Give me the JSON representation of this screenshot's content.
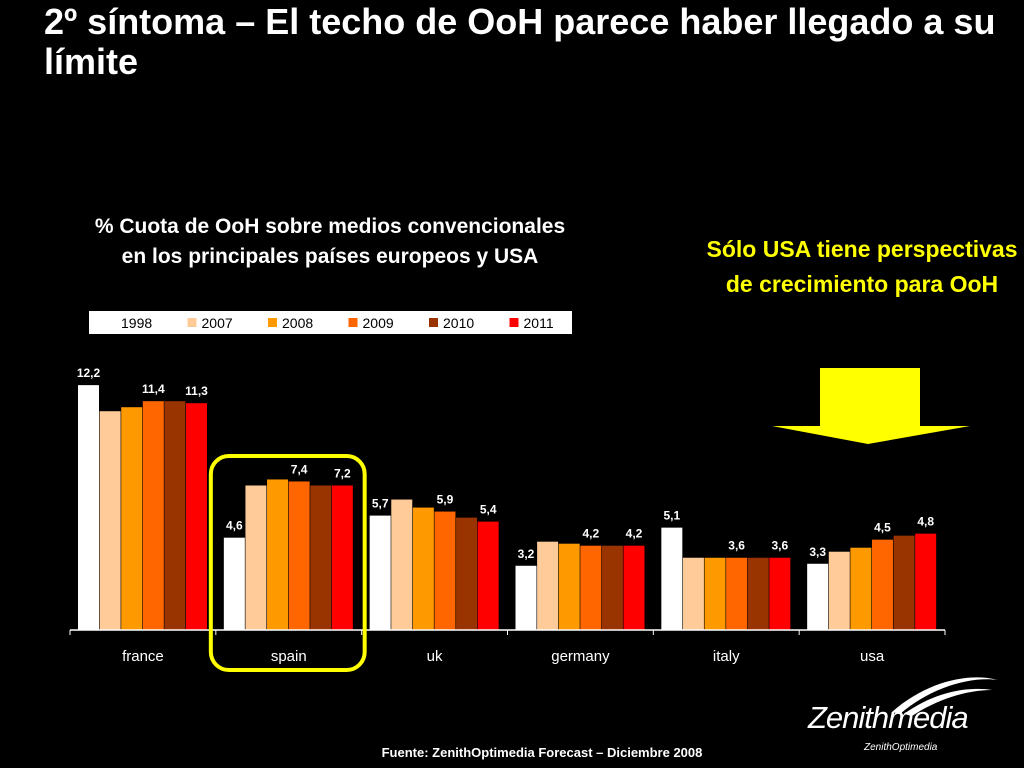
{
  "slide": {
    "title": "2º síntoma – El techo de OoH parece haber llegado a su límite",
    "subtitle_line1": "% Cuota de OoH sobre medios convencionales",
    "subtitle_line2": "en los principales países europeos y USA",
    "callout": "Sólo USA tiene perspectivas de crecimiento para OoH",
    "source": "Fuente: ZenithOptimedia Forecast – Diciembre 2008",
    "logo_main": "Zenithmedia",
    "logo_sub": "ZenithOptimedia"
  },
  "colors": {
    "background": "#000000",
    "callout": "#ffff00",
    "highlight": "#ffff00",
    "series": [
      "#ffffff",
      "#ffcc99",
      "#ff9900",
      "#ff6600",
      "#993300",
      "#ff0000"
    ]
  },
  "chart_data": {
    "type": "bar",
    "categories": [
      "france",
      "spain",
      "uk",
      "germany",
      "italy",
      "usa"
    ],
    "series": [
      {
        "name": "1998",
        "values": [
          12.2,
          4.6,
          5.7,
          3.2,
          5.1,
          3.3
        ]
      },
      {
        "name": "2007",
        "values": [
          10.9,
          7.2,
          6.5,
          4.4,
          3.6,
          3.9
        ]
      },
      {
        "name": "2008",
        "values": [
          11.1,
          7.5,
          6.1,
          4.3,
          3.6,
          4.1
        ]
      },
      {
        "name": "2009",
        "values": [
          11.4,
          7.4,
          5.9,
          4.2,
          3.6,
          4.5
        ]
      },
      {
        "name": "2010",
        "values": [
          11.4,
          7.2,
          5.6,
          4.2,
          3.6,
          4.7
        ]
      },
      {
        "name": "2011",
        "values": [
          11.3,
          7.2,
          5.4,
          4.2,
          3.6,
          4.8
        ]
      }
    ],
    "data_labels": [
      {
        "category": "france",
        "series": "1998",
        "text": "12,2"
      },
      {
        "category": "france",
        "series": "2009",
        "text": "11,4"
      },
      {
        "category": "france",
        "series": "2011",
        "text": "11,3"
      },
      {
        "category": "spain",
        "series": "1998",
        "text": "4,6"
      },
      {
        "category": "spain",
        "series": "2009",
        "text": "7,4"
      },
      {
        "category": "spain",
        "series": "2011",
        "text": "7,2"
      },
      {
        "category": "uk",
        "series": "1998",
        "text": "5,7"
      },
      {
        "category": "uk",
        "series": "2009",
        "text": "5,9"
      },
      {
        "category": "uk",
        "series": "2011",
        "text": "5,4"
      },
      {
        "category": "germany",
        "series": "1998",
        "text": "3,2"
      },
      {
        "category": "germany",
        "series": "2009",
        "text": "4,2"
      },
      {
        "category": "germany",
        "series": "2011",
        "text": "4,2"
      },
      {
        "category": "italy",
        "series": "1998",
        "text": "5,1"
      },
      {
        "category": "italy",
        "series": "2009",
        "text": "3,6"
      },
      {
        "category": "italy",
        "series": "2011",
        "text": "3,6"
      },
      {
        "category": "usa",
        "series": "1998",
        "text": "3,3"
      },
      {
        "category": "usa",
        "series": "2009",
        "text": "4,5"
      },
      {
        "category": "usa",
        "series": "2011",
        "text": "4,8"
      }
    ],
    "highlighted_category": "spain",
    "ylim": [
      0,
      14
    ],
    "legend_position": "top",
    "grid": false
  }
}
